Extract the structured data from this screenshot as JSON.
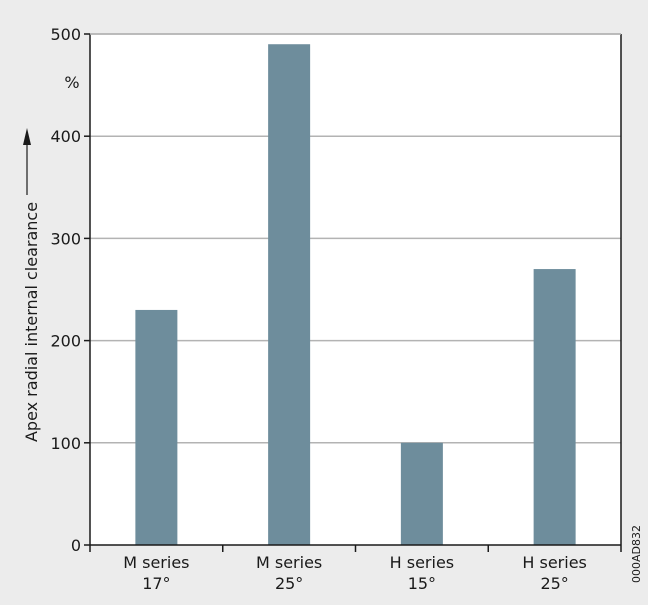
{
  "colors": {
    "panel_background": "#ececec",
    "plot_background": "#ffffff",
    "bar": "#6e8d9c",
    "gridline": "#b3b3b3",
    "axis": "#1a1a1a"
  },
  "figure_code": "000AD832",
  "chart_data": {
    "type": "bar",
    "categories": [
      [
        "M series",
        "17°"
      ],
      [
        "M series",
        "25°"
      ],
      [
        "H series",
        "15°"
      ],
      [
        "H series",
        "25°"
      ]
    ],
    "values": [
      230,
      490,
      100,
      270
    ],
    "ylabel": "Apex radial internal clearance",
    "y_unit": "%",
    "ylim": [
      0,
      500
    ],
    "yticks": [
      0,
      100,
      200,
      300,
      400,
      500
    ],
    "grid": true,
    "legend": false
  }
}
